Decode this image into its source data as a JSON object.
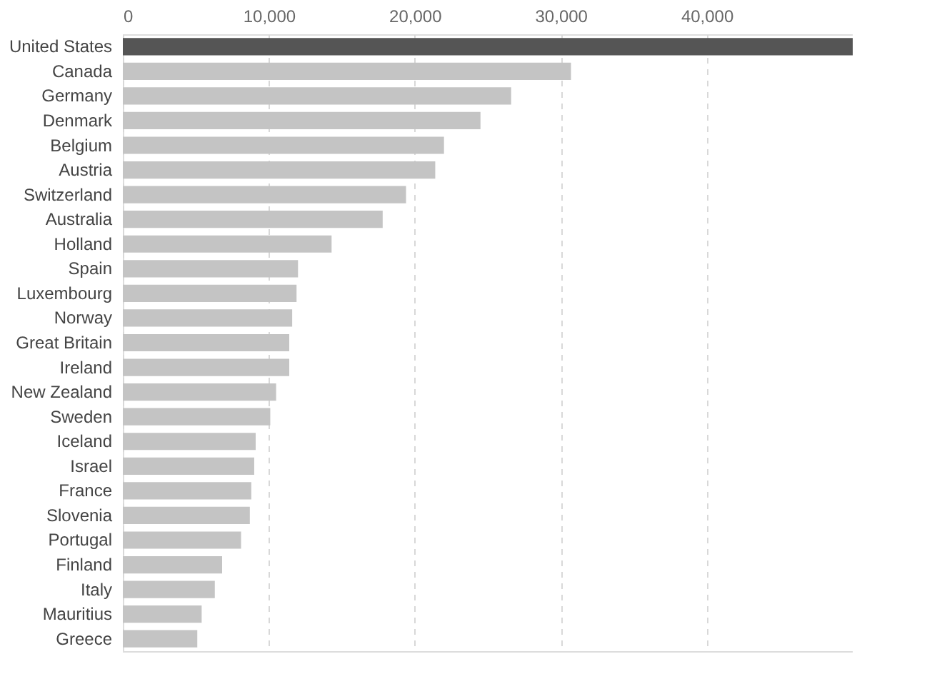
{
  "chart_data": {
    "type": "bar",
    "orientation": "horizontal",
    "categories": [
      "United States",
      "Canada",
      "Germany",
      "Denmark",
      "Belgium",
      "Austria",
      "Switzerland",
      "Australia",
      "Holland",
      "Spain",
      "Luxembourg",
      "Norway",
      "Great Britain",
      "Ireland",
      "New Zealand",
      "Sweden",
      "Iceland",
      "Israel",
      "France",
      "Slovenia",
      "Portugal",
      "Finland",
      "Italy",
      "Mauritius",
      "Greece"
    ],
    "values": [
      50000,
      30700,
      26600,
      24500,
      22000,
      21400,
      19400,
      17800,
      14300,
      12000,
      11900,
      11600,
      11400,
      11400,
      10500,
      10100,
      9100,
      9000,
      8800,
      8700,
      8100,
      6800,
      6300,
      5400,
      5100
    ],
    "colors": [
      "#555555",
      "#c4c4c4",
      "#c4c4c4",
      "#c4c4c4",
      "#c4c4c4",
      "#c4c4c4",
      "#c4c4c4",
      "#c4c4c4",
      "#c4c4c4",
      "#c4c4c4",
      "#c4c4c4",
      "#c4c4c4",
      "#c4c4c4",
      "#c4c4c4",
      "#c4c4c4",
      "#c4c4c4",
      "#c4c4c4",
      "#c4c4c4",
      "#c4c4c4",
      "#c4c4c4",
      "#c4c4c4",
      "#c4c4c4",
      "#c4c4c4",
      "#c4c4c4",
      "#c4c4c4"
    ],
    "xlim": [
      0,
      50000
    ],
    "xticks": [
      0,
      {
        "value": 10000,
        "label": "10,000"
      },
      {
        "value": 20000,
        "label": "20,000"
      },
      {
        "value": 30000,
        "label": "30,000"
      },
      {
        "value": 40000,
        "label": "40,000"
      }
    ],
    "grid": "x",
    "legend": false
  }
}
